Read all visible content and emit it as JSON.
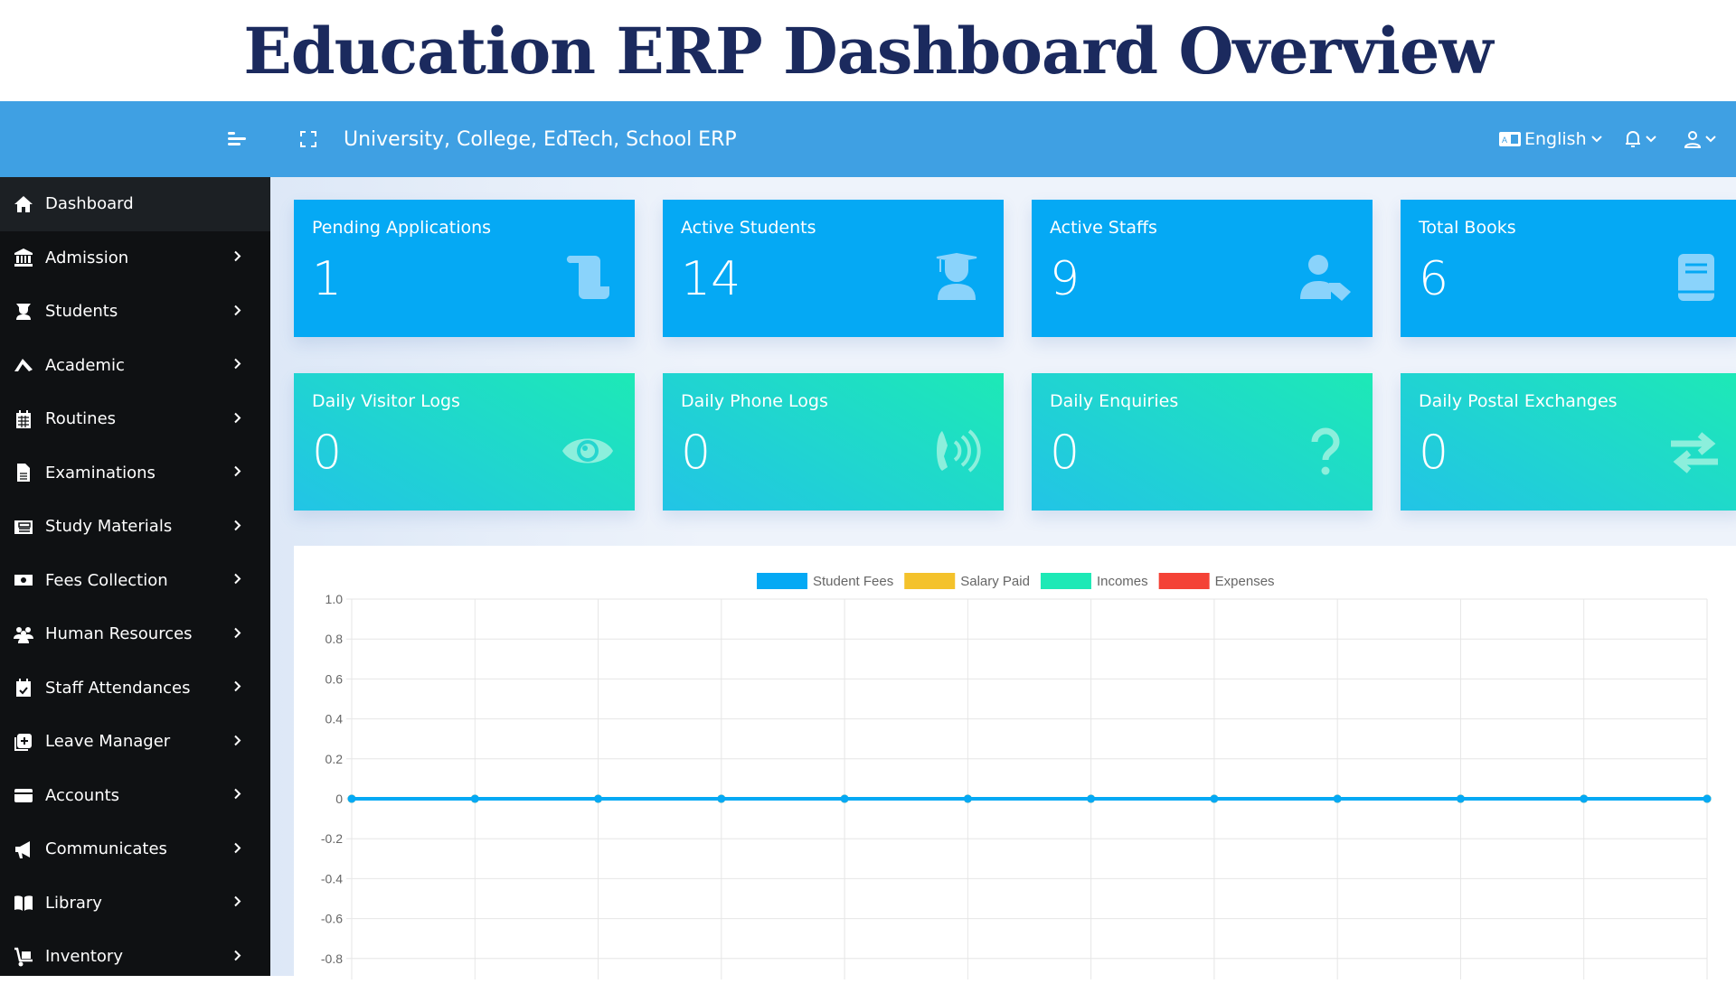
{
  "page_title": "Education ERP Dashboard Overview",
  "header": {
    "app_title": "University, College, EdTech, School ERP",
    "language": "English",
    "icons": [
      "menu-toggle-icon",
      "fullscreen-icon",
      "language-icon",
      "bell-icon",
      "user-icon"
    ]
  },
  "sidebar": {
    "items": [
      {
        "label": "Dashboard",
        "icon": "home-icon",
        "active": true
      },
      {
        "label": "Admission",
        "icon": "university-icon"
      },
      {
        "label": "Students",
        "icon": "student-icon"
      },
      {
        "label": "Academic",
        "icon": "academic-icon"
      },
      {
        "label": "Routines",
        "icon": "calendar-icon"
      },
      {
        "label": "Examinations",
        "icon": "file-icon"
      },
      {
        "label": "Study Materials",
        "icon": "newspaper-icon"
      },
      {
        "label": "Fees Collection",
        "icon": "money-icon"
      },
      {
        "label": "Human Resources",
        "icon": "users-icon"
      },
      {
        "label": "Staff Attendances",
        "icon": "calendar-check-icon"
      },
      {
        "label": "Leave Manager",
        "icon": "leave-icon"
      },
      {
        "label": "Accounts",
        "icon": "credit-card-icon"
      },
      {
        "label": "Communicates",
        "icon": "bullhorn-icon"
      },
      {
        "label": "Library",
        "icon": "book-icon"
      },
      {
        "label": "Inventory",
        "icon": "dolly-icon"
      }
    ]
  },
  "cards": [
    {
      "title": "Pending Applications",
      "value": "1",
      "icon": "scroll-icon"
    },
    {
      "title": "Active Students",
      "value": "14",
      "icon": "graduate-icon"
    },
    {
      "title": "Active Staffs",
      "value": "9",
      "icon": "user-tag-icon"
    },
    {
      "title": "Total Books",
      "value": "6",
      "icon": "book-icon"
    },
    {
      "title": "Daily Visitor Logs",
      "value": "0",
      "icon": "eye-icon"
    },
    {
      "title": "Daily Phone Logs",
      "value": "0",
      "icon": "phone-volume-icon"
    },
    {
      "title": "Daily Enquiries",
      "value": "0",
      "icon": "question-icon"
    },
    {
      "title": "Daily Postal Exchanges",
      "value": "0",
      "icon": "exchange-icon"
    }
  ],
  "colors": {
    "header": "#3fa0e3",
    "sidebar": "#0f1113",
    "card_blue": "#05a9f4",
    "card_teal_start": "#22c4e6",
    "card_teal_end": "#1de9b6",
    "title": "#1b2a5e"
  },
  "chart_data": {
    "type": "line",
    "ylim": [
      -1.0,
      1.0
    ],
    "yticks": [
      "1.0",
      "0.8",
      "0.6",
      "0.4",
      "0.2",
      "0",
      "-0.2",
      "-0.4",
      "-0.6",
      "-0.8"
    ],
    "grid": true,
    "legend_position": "top",
    "series": [
      {
        "name": "Student Fees",
        "color": "#05a9f4",
        "values": [
          0,
          0,
          0,
          0,
          0,
          0,
          0,
          0,
          0,
          0,
          0,
          0
        ]
      },
      {
        "name": "Salary Paid",
        "color": "#f4c22b",
        "values": [
          0,
          0,
          0,
          0,
          0,
          0,
          0,
          0,
          0,
          0,
          0,
          0
        ]
      },
      {
        "name": "Incomes",
        "color": "#1de9b6",
        "values": [
          0,
          0,
          0,
          0,
          0,
          0,
          0,
          0,
          0,
          0,
          0,
          0
        ]
      },
      {
        "name": "Expenses",
        "color": "#f44236",
        "values": [
          0,
          0,
          0,
          0,
          0,
          0,
          0,
          0,
          0,
          0,
          0,
          0
        ]
      }
    ]
  }
}
